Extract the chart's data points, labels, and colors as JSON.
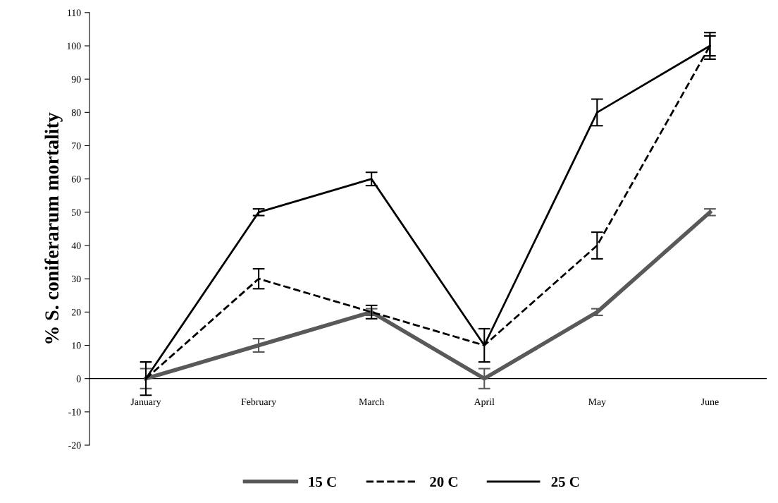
{
  "chart_data": {
    "type": "line",
    "ylabel": "% S. coniferarum mortality",
    "categories": [
      "January",
      "February",
      "March",
      "April",
      "May",
      "June"
    ],
    "ylim": [
      -20,
      110
    ],
    "yticks": [
      -20,
      -10,
      0,
      10,
      20,
      30,
      40,
      50,
      60,
      70,
      80,
      90,
      100,
      110
    ],
    "grid": false,
    "legend": "bottom",
    "marker": "none",
    "series": [
      {
        "name": "15 C",
        "color": "#595959",
        "line_style": "solid",
        "values": [
          0,
          10,
          20,
          0,
          20,
          50
        ],
        "errors": [
          3,
          2,
          1,
          3,
          1,
          1
        ]
      },
      {
        "name": "20 C",
        "color": "#000000",
        "line_style": "dashed",
        "values": [
          0,
          30,
          20,
          10,
          40,
          100
        ],
        "errors": [
          null,
          3,
          2,
          5,
          4,
          3
        ]
      },
      {
        "name": "25 C",
        "color": "#000000",
        "line_style": "solid",
        "values": [
          0,
          50,
          60,
          10,
          80,
          100
        ],
        "errors": [
          5,
          1,
          2,
          null,
          4,
          4
        ]
      }
    ]
  }
}
